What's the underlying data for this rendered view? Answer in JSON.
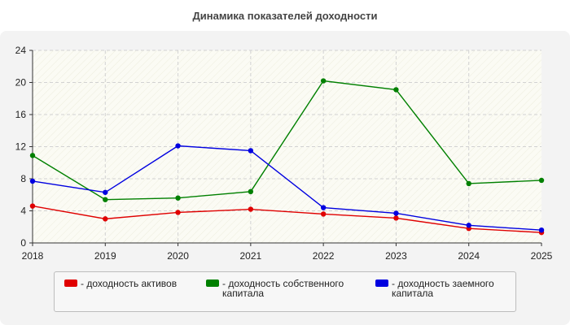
{
  "chart_data": {
    "type": "line",
    "title": "Динамика показателей доходности",
    "x": [
      "2018",
      "2019",
      "2020",
      "2021",
      "2022",
      "2023",
      "2024",
      "2025"
    ],
    "ylim": [
      0,
      24
    ],
    "yticks": [
      "0",
      "4",
      "8",
      "12",
      "16",
      "20",
      "24"
    ],
    "grid": true,
    "legend_position": "bottom",
    "series": [
      {
        "name": "- доходность активов",
        "color": "#e00000",
        "values": [
          4.6,
          3.0,
          3.8,
          4.2,
          3.6,
          3.1,
          1.8,
          1.3
        ]
      },
      {
        "name": "- доходность собственного капитала",
        "color": "#008000",
        "values": [
          10.9,
          5.4,
          5.6,
          6.4,
          20.2,
          19.1,
          7.4,
          7.8
        ]
      },
      {
        "name": "- доходность заемного капитала",
        "color": "#0000e0",
        "values": [
          7.7,
          6.3,
          12.1,
          11.5,
          4.4,
          3.7,
          2.2,
          1.6
        ]
      }
    ]
  }
}
